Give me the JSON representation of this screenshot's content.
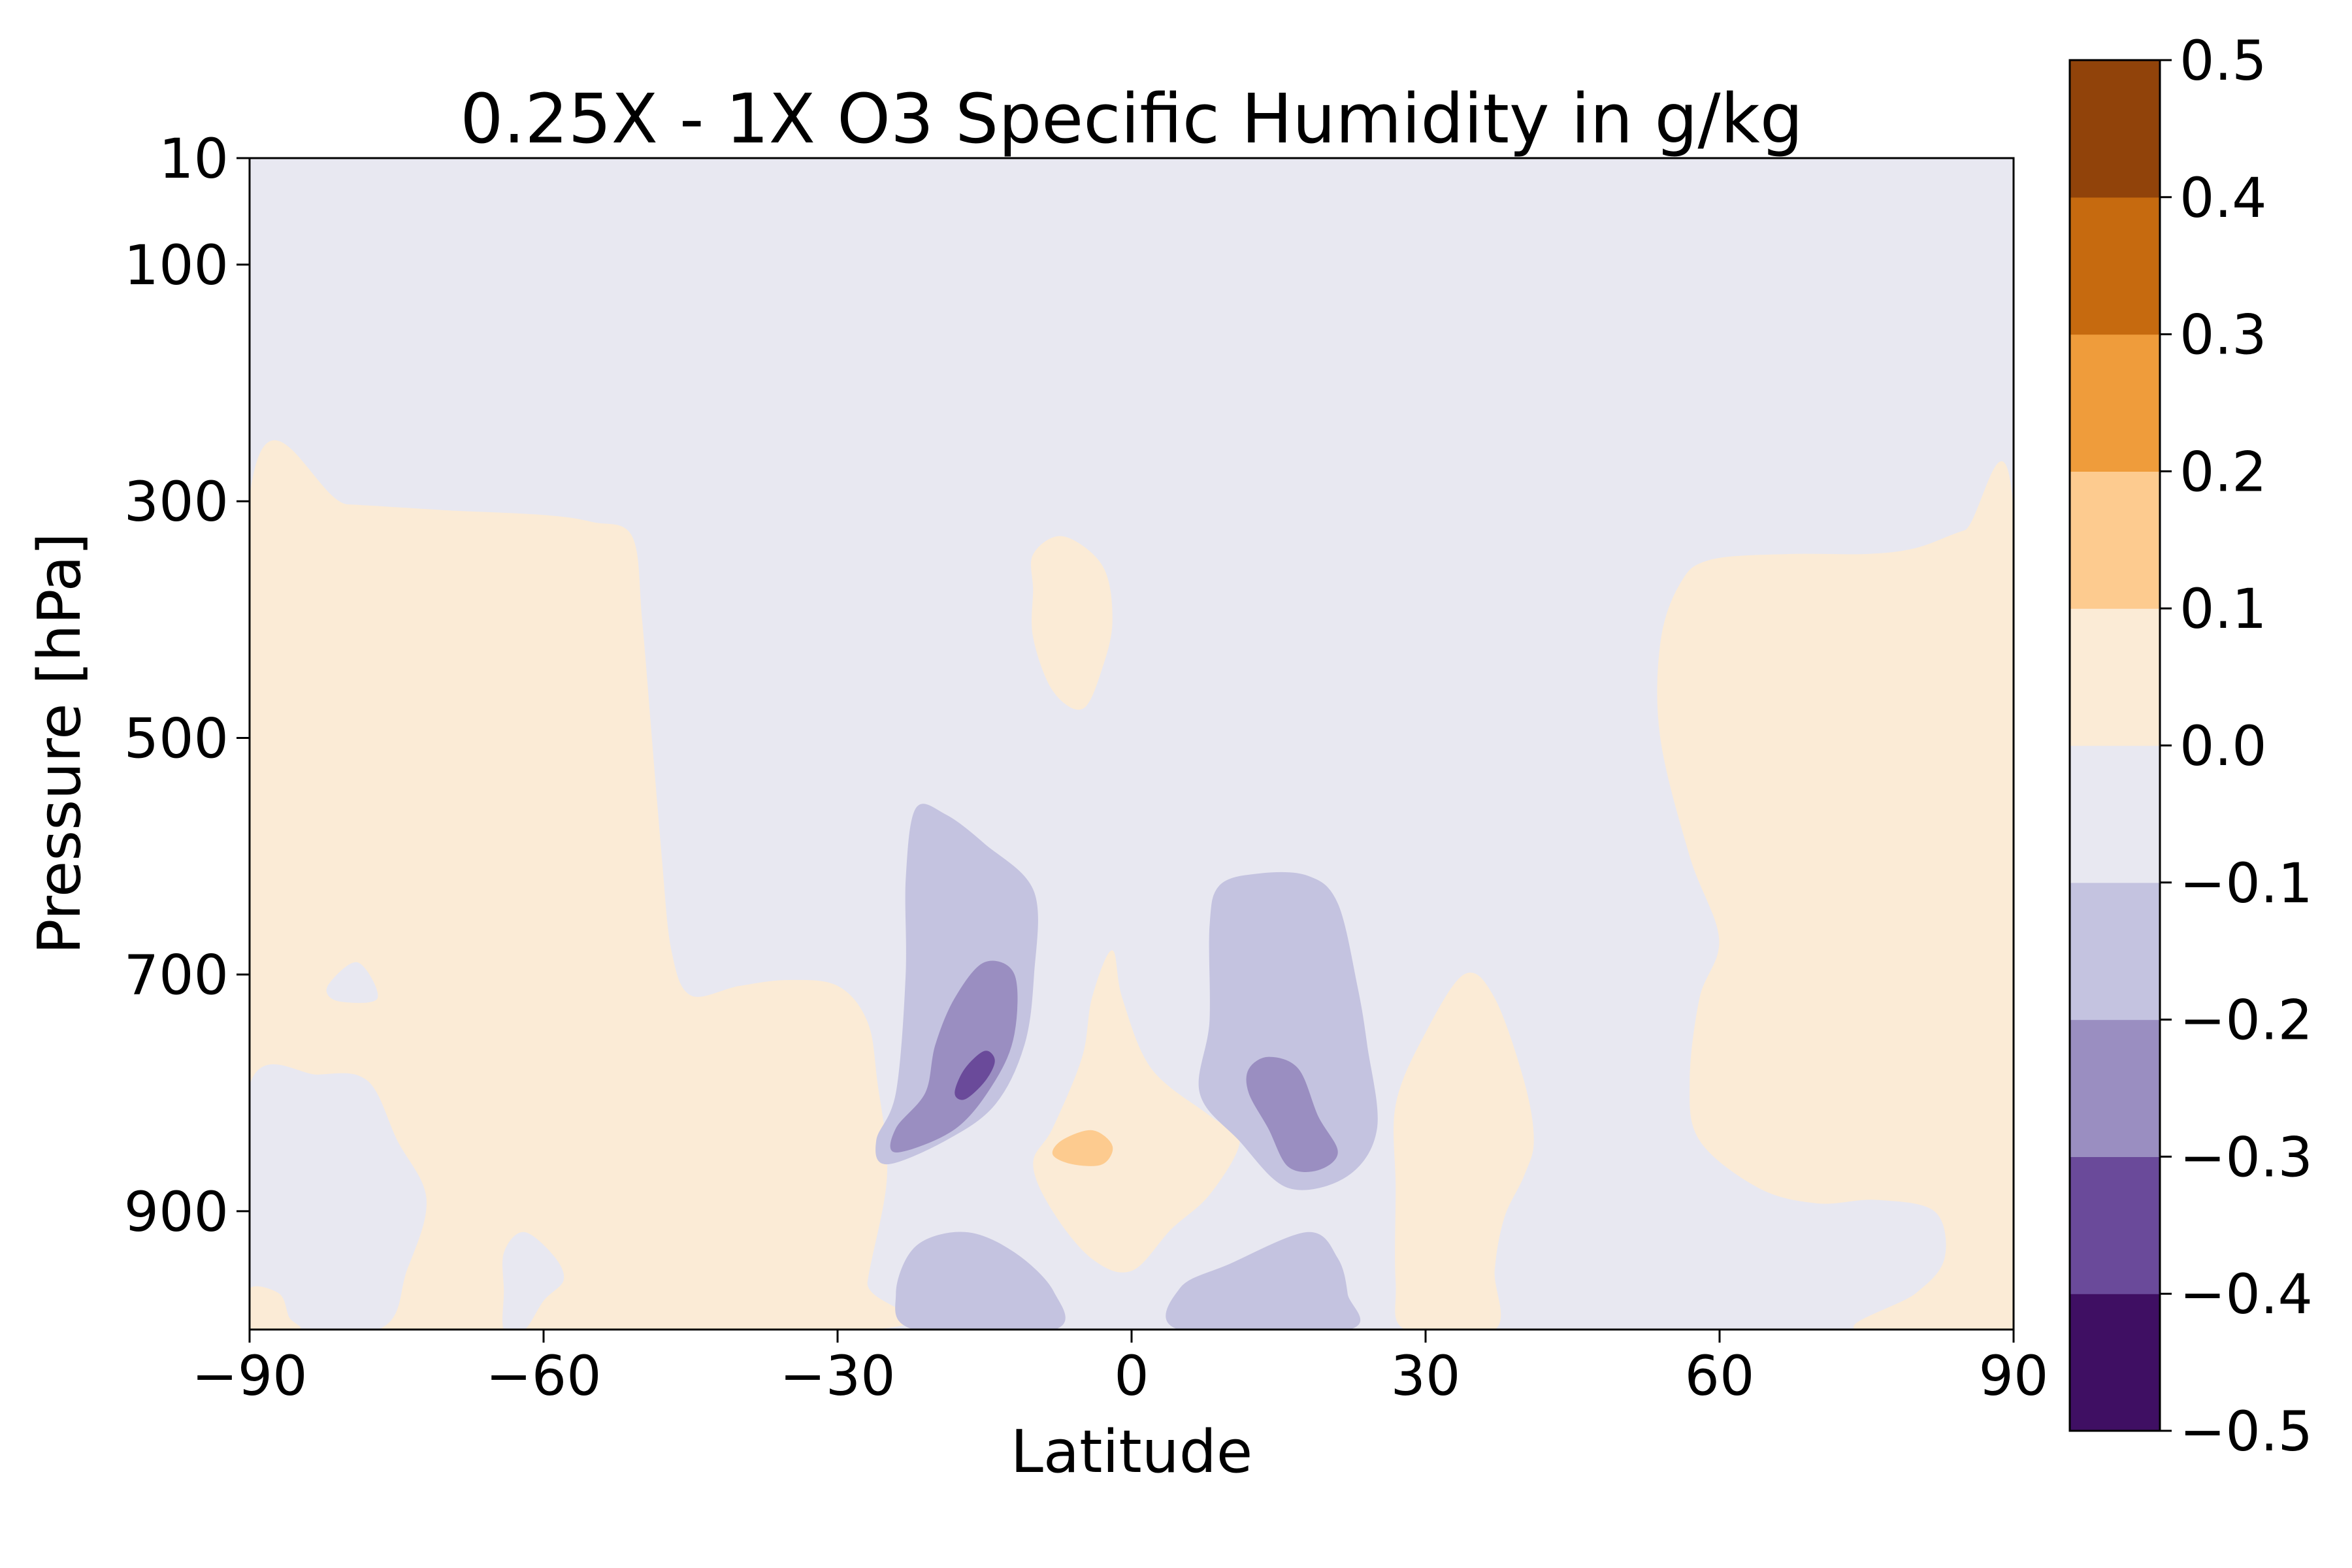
{
  "chart_data": {
    "type": "contourf",
    "title": "0.25X - 1X O3 Specific Humidity in g/kg",
    "xlabel": "Latitude",
    "ylabel": "Pressure [hPa]",
    "xlim": [
      -90,
      90
    ],
    "ylim": [
      1000,
      10
    ],
    "x_ticks": [
      -90,
      -60,
      -30,
      0,
      30,
      60,
      90
    ],
    "x_tick_labels": [
      "−90",
      "−60",
      "−30",
      "0",
      "30",
      "60",
      "90"
    ],
    "y_ticks": [
      10,
      100,
      300,
      500,
      700,
      900
    ],
    "y_tick_labels": [
      "10",
      "100",
      "300",
      "500",
      "700",
      "900"
    ],
    "colorbar": {
      "levels": [
        -0.5,
        -0.4,
        -0.3,
        -0.2,
        -0.1,
        0.0,
        0.1,
        0.2,
        0.3,
        0.4,
        0.5
      ],
      "tick_labels": [
        "−0.5",
        "−0.4",
        "−0.3",
        "−0.2",
        "−0.1",
        "0.0",
        "0.1",
        "0.2",
        "0.3",
        "0.4",
        "0.5"
      ],
      "colors": [
        "#3f0f63",
        "#6a4a9a",
        "#9a8ec1",
        "#c4c3e0",
        "#e8e8f1",
        "#fbebd6",
        "#fdcb8f",
        "#ef9c3b",
        "#c66a0f",
        "#91430a"
      ]
    },
    "background_level_color": "#e8e8f1",
    "regions": [
      {
        "name": "south-polar-positive",
        "color": "#fbebd6",
        "points": [
          [
            -90,
            300
          ],
          [
            -80,
            303
          ],
          [
            -70,
            308
          ],
          [
            -60,
            312
          ],
          [
            -55,
            318
          ],
          [
            -51,
            330
          ],
          [
            -50,
            400
          ],
          [
            -49,
            500
          ],
          [
            -48,
            600
          ],
          [
            -47,
            680
          ],
          [
            -45,
            718
          ],
          [
            -40,
            710
          ],
          [
            -35,
            705
          ],
          [
            -30,
            710
          ],
          [
            -27,
            740
          ],
          [
            -26,
            790
          ],
          [
            -25,
            870
          ],
          [
            -27,
            960
          ],
          [
            -27,
            1000
          ],
          [
            -90,
            1000
          ]
        ]
      },
      {
        "name": "south-lower-negative",
        "color": "#e8e8f1",
        "points": [
          [
            -90,
            795
          ],
          [
            -83,
            785
          ],
          [
            -78,
            790
          ],
          [
            -75,
            840
          ],
          [
            -72,
            890
          ],
          [
            -74,
            950
          ],
          [
            -77,
            1000
          ],
          [
            -90,
            1000
          ]
        ]
      },
      {
        "name": "south-polar-corner-positive",
        "color": "#fbebd6",
        "points": [
          [
            -90,
            966
          ],
          [
            -87,
            970
          ],
          [
            -86,
            990
          ],
          [
            -85,
            1000
          ],
          [
            -90,
            1000
          ]
        ]
      },
      {
        "name": "south-small-negative-a",
        "color": "#e8e8f1",
        "points": [
          [
            -82,
            710
          ],
          [
            -79,
            690
          ],
          [
            -77,
            720
          ],
          [
            -81,
            722
          ]
        ]
      },
      {
        "name": "south-small-negative-b",
        "color": "#e8e8f1",
        "points": [
          [
            -64,
            935
          ],
          [
            -62,
            918
          ],
          [
            -59,
            938
          ],
          [
            -58,
            958
          ],
          [
            -60,
            975
          ],
          [
            -62,
            1000
          ],
          [
            -64,
            1000
          ],
          [
            -64,
            968
          ]
        ]
      },
      {
        "name": "mid-upper-positive",
        "color": "#fbebd6",
        "points": [
          [
            -10,
            345
          ],
          [
            -7,
            330
          ],
          [
            -3,
            355
          ],
          [
            -2,
            400
          ],
          [
            -3,
            440
          ],
          [
            -5,
            475
          ],
          [
            -8,
            460
          ],
          [
            -10,
            415
          ],
          [
            -10,
            375
          ]
        ]
      },
      {
        "name": "central-positive",
        "color": "#fbebd6",
        "points": [
          [
            -2,
            680
          ],
          [
            -1,
            720
          ],
          [
            2,
            780
          ],
          [
            8,
            820
          ],
          [
            11,
            840
          ],
          [
            8,
            885
          ],
          [
            4,
            915
          ],
          [
            0,
            950
          ],
          [
            -4,
            940
          ],
          [
            -8,
            900
          ],
          [
            -10,
            860
          ],
          [
            -8,
            830
          ],
          [
            -5,
            770
          ],
          [
            -4,
            720
          ]
        ]
      },
      {
        "name": "central-positive-core",
        "color": "#fdcb8f",
        "points": [
          [
            -7,
            840
          ],
          [
            -4,
            832
          ],
          [
            -2,
            845
          ],
          [
            -3,
            860
          ],
          [
            -6,
            860
          ],
          [
            -8,
            852
          ]
        ]
      },
      {
        "name": "south-tropical-negative",
        "color": "#c4c3e0",
        "points": [
          [
            -22,
            560
          ],
          [
            -19,
            565
          ],
          [
            -15,
            590
          ],
          [
            -10,
            630
          ],
          [
            -10,
            700
          ],
          [
            -11,
            760
          ],
          [
            -14,
            810
          ],
          [
            -19,
            840
          ],
          [
            -25,
            860
          ],
          [
            -26,
            840
          ],
          [
            -24,
            800
          ],
          [
            -23,
            700
          ],
          [
            -23,
            620
          ]
        ]
      },
      {
        "name": "south-tropical-negative-mid",
        "color": "#9a8ec1",
        "points": [
          [
            -15,
            690
          ],
          [
            -12,
            700
          ],
          [
            -12,
            750
          ],
          [
            -14,
            790
          ],
          [
            -18,
            830
          ],
          [
            -24,
            850
          ],
          [
            -24,
            830
          ],
          [
            -21,
            800
          ],
          [
            -20,
            760
          ],
          [
            -18,
            720
          ]
        ]
      },
      {
        "name": "south-tropical-negative-core",
        "color": "#6a4a9a",
        "points": [
          [
            -15,
            765
          ],
          [
            -14,
            773
          ],
          [
            -15,
            790
          ],
          [
            -17,
            805
          ],
          [
            -18,
            800
          ],
          [
            -17,
            780
          ]
        ]
      },
      {
        "name": "north-tropical-negative",
        "color": "#c4c3e0",
        "points": [
          [
            9,
            625
          ],
          [
            13,
            615
          ],
          [
            18,
            617
          ],
          [
            21,
            640
          ],
          [
            23,
            710
          ],
          [
            24,
            760
          ],
          [
            25,
            830
          ],
          [
            22,
            870
          ],
          [
            16,
            880
          ],
          [
            11,
            840
          ],
          [
            7,
            800
          ],
          [
            8,
            740
          ],
          [
            8,
            660
          ]
        ]
      },
      {
        "name": "north-tropical-negative-mid",
        "color": "#9a8ec1",
        "points": [
          [
            12,
            780
          ],
          [
            14,
            770
          ],
          [
            17,
            780
          ],
          [
            19,
            820
          ],
          [
            21,
            850
          ],
          [
            19,
            865
          ],
          [
            16,
            862
          ],
          [
            14,
            830
          ],
          [
            12,
            800
          ]
        ]
      },
      {
        "name": "south-bottom-negative",
        "color": "#c4c3e0",
        "points": [
          [
            -22,
            930
          ],
          [
            -17,
            918
          ],
          [
            -12,
            935
          ],
          [
            -8,
            968
          ],
          [
            -8,
            1000
          ],
          [
            -22,
            1000
          ],
          [
            -24,
            970
          ]
        ]
      },
      {
        "name": "north-bottom-negative",
        "color": "#c4c3e0",
        "points": [
          [
            5,
            965
          ],
          [
            10,
            945
          ],
          [
            18,
            918
          ],
          [
            21,
            940
          ],
          [
            22,
            970
          ],
          [
            22,
            1000
          ],
          [
            5,
            1000
          ]
        ]
      },
      {
        "name": "north-subtropical-positive",
        "color": "#fbebd6",
        "points": [
          [
            34,
            700
          ],
          [
            37,
            720
          ],
          [
            40,
            790
          ],
          [
            41,
            840
          ],
          [
            40,
            870
          ],
          [
            38,
            905
          ],
          [
            37,
            950
          ],
          [
            37,
            1000
          ],
          [
            28,
            1000
          ],
          [
            27,
            960
          ],
          [
            27,
            880
          ],
          [
            27,
            810
          ],
          [
            30,
            750
          ]
        ]
      },
      {
        "name": "north-polar-positive",
        "color": "#fbebd6",
        "points": [
          [
            90,
            315
          ],
          [
            85,
            325
          ],
          [
            80,
            340
          ],
          [
            75,
            345
          ],
          [
            67,
            345
          ],
          [
            59,
            350
          ],
          [
            56,
            370
          ],
          [
            54,
            420
          ],
          [
            54,
            500
          ],
          [
            57,
            600
          ],
          [
            60,
            670
          ],
          [
            58,
            720
          ],
          [
            57,
            790
          ],
          [
            58,
            840
          ],
          [
            64,
            880
          ],
          [
            70,
            893
          ],
          [
            76,
            890
          ],
          [
            82,
            900
          ],
          [
            83,
            940
          ],
          [
            80,
            970
          ],
          [
            74,
            1000
          ],
          [
            90,
            1000
          ]
        ]
      }
    ]
  }
}
